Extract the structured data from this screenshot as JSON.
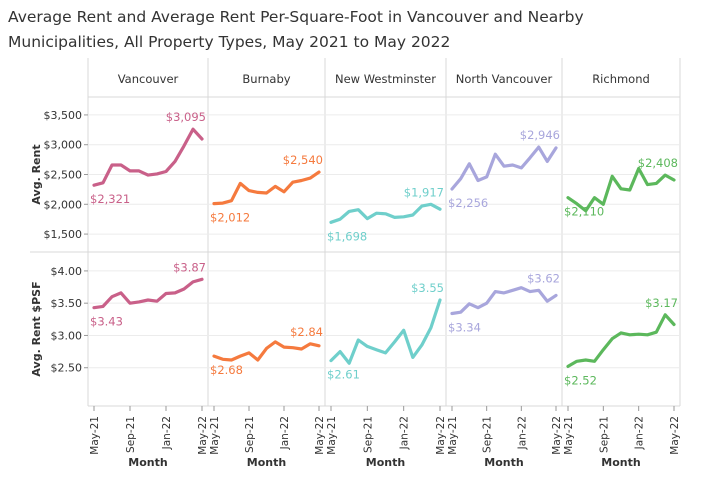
{
  "chart_data": {
    "type": "line",
    "title_lines": [
      "Average Rent and Average Rent Per-Square-Foot in Vancouver and Nearby",
      "Municipalities, All Property Types, May 2021 to May 2022"
    ],
    "xlabel": "Month",
    "x": [
      "May-21",
      "Jun-21",
      "Jul-21",
      "Aug-21",
      "Sep-21",
      "Oct-21",
      "Nov-21",
      "Dec-21",
      "Jan-22",
      "Feb-22",
      "Mar-22",
      "Apr-22",
      "May-22"
    ],
    "x_tick_labels": [
      "May-21",
      "Sep-21",
      "Jan-22",
      "May-22"
    ],
    "grid": true,
    "panels": [
      "Vancouver",
      "Burnaby",
      "New Westminster",
      "North Vancouver",
      "Richmond"
    ],
    "colors": {
      "Vancouver": "#c96089",
      "Burnaby": "#f57a3e",
      "New Westminster": "#6fcfcb",
      "North Vancouver": "#a8a6dc",
      "Richmond": "#5cb85c"
    },
    "rows": [
      {
        "metric": "Avg. Rent",
        "ylabel": "Avg. Rent",
        "ylim": [
          1300,
          3700
        ],
        "ticks": [
          1500,
          2000,
          2500,
          3000,
          3500
        ],
        "tick_labels": [
          "$1,500",
          "$2,000",
          "$2,500",
          "$3,000",
          "$3,500"
        ],
        "series": [
          {
            "panel": "Vancouver",
            "values": [
              2321,
              2360,
              2660,
              2660,
              2560,
              2560,
              2490,
              2510,
              2550,
              2720,
              2980,
              3260,
              3095
            ],
            "first_label": "$2,321",
            "last_label": "$3,095"
          },
          {
            "panel": "Burnaby",
            "values": [
              2012,
              2020,
              2060,
              2350,
              2230,
              2200,
              2190,
              2300,
              2210,
              2370,
              2400,
              2440,
              2540
            ],
            "first_label": "$2,012",
            "last_label": "$2,540"
          },
          {
            "panel": "New Westminster",
            "values": [
              1698,
              1750,
              1880,
              1910,
              1760,
              1850,
              1840,
              1780,
              1790,
              1820,
              1970,
              2000,
              1917
            ],
            "first_label": "$1,698",
            "last_label": "$1,917"
          },
          {
            "panel": "North Vancouver",
            "values": [
              2256,
              2430,
              2680,
              2400,
              2460,
              2840,
              2640,
              2660,
              2610,
              2780,
              2960,
              2720,
              2946
            ],
            "first_label": "$2,256",
            "last_label": "$2,946"
          },
          {
            "panel": "Richmond",
            "values": [
              2110,
              2010,
              1890,
              2110,
              2000,
              2470,
              2260,
              2240,
              2600,
              2330,
              2350,
              2490,
              2408
            ],
            "first_label": "$2,110",
            "last_label": "$2,408"
          }
        ]
      },
      {
        "metric": "Avg. Rent $PSF",
        "ylabel": "Avg. Rent $PSF",
        "ylim": [
          2.0,
          4.2
        ],
        "ticks": [
          2.5,
          3.0,
          3.5,
          4.0
        ],
        "tick_labels": [
          "$2.50",
          "$3.00",
          "$3.50",
          "$4.00"
        ],
        "series": [
          {
            "panel": "Vancouver",
            "values": [
              3.43,
              3.45,
              3.6,
              3.66,
              3.5,
              3.52,
              3.55,
              3.53,
              3.65,
              3.66,
              3.72,
              3.83,
              3.87
            ],
            "first_label": "$3.43",
            "last_label": "$3.87"
          },
          {
            "panel": "Burnaby",
            "values": [
              2.68,
              2.63,
              2.62,
              2.68,
              2.73,
              2.62,
              2.8,
              2.9,
              2.82,
              2.81,
              2.79,
              2.87,
              2.84
            ],
            "first_label": "$2.68",
            "last_label": "$2.84"
          },
          {
            "panel": "New Westminster",
            "values": [
              2.61,
              2.75,
              2.57,
              2.93,
              2.83,
              2.78,
              2.73,
              2.9,
              3.08,
              2.66,
              2.85,
              3.12,
              3.55
            ],
            "first_label": "$2.61",
            "last_label": "$3.55"
          },
          {
            "panel": "North Vancouver",
            "values": [
              3.34,
              3.36,
              3.49,
              3.43,
              3.5,
              3.68,
              3.66,
              3.7,
              3.74,
              3.68,
              3.7,
              3.53,
              3.62
            ],
            "first_label": "$3.34",
            "last_label": "$3.62"
          },
          {
            "panel": "Richmond",
            "values": [
              2.52,
              2.6,
              2.62,
              2.6,
              2.78,
              2.95,
              3.04,
              3.01,
              3.02,
              3.01,
              3.05,
              3.32,
              3.17
            ],
            "first_label": "$2.52",
            "last_label": "$3.17"
          }
        ]
      }
    ]
  }
}
